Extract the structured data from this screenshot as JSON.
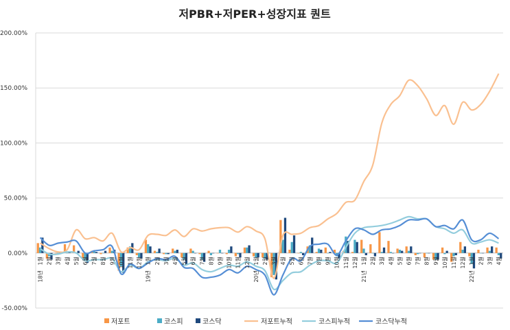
{
  "chart_data": {
    "type": "bar+line",
    "title": "저PBR+저PER+성장지표 퀀트",
    "ylim": [
      -50,
      200
    ],
    "yticks": [
      "-50.00%",
      "0.00%",
      "50.00%",
      "100.00%",
      "150.00%",
      "200.00%"
    ],
    "ytick_values": [
      -50,
      0,
      50,
      100,
      150,
      200
    ],
    "grid": true,
    "legend_position": "bottom",
    "categories": [
      "1월",
      "2월",
      "3월",
      "4월",
      "5월",
      "6월",
      "7월",
      "8월",
      "9월",
      "10월",
      "11월",
      "12월",
      "1월",
      "2월",
      "3월",
      "4월",
      "5월",
      "6월",
      "7월",
      "8월",
      "9월",
      "10월",
      "11월",
      "12월",
      "1월",
      "2월",
      "3월",
      "4월",
      "5월",
      "6월",
      "7월",
      "8월",
      "9월",
      "10월",
      "11월",
      "12월",
      "1월",
      "2월",
      "3월",
      "4월",
      "5월",
      "6월",
      "7월",
      "8월",
      "9월",
      "10월",
      "11월",
      "12월",
      "1월",
      "2월",
      "3월",
      "4월"
    ],
    "year_labels": [
      {
        "index": 0,
        "label": "18년"
      },
      {
        "index": 12,
        "label": "19년"
      },
      {
        "index": 24,
        "label": "20년"
      },
      {
        "index": 36,
        "label": "21년"
      },
      {
        "index": 48,
        "label": "22년"
      }
    ],
    "series": [
      {
        "name": "저포트",
        "kind": "bar",
        "color": "#F79646",
        "values": [
          9,
          -5,
          0,
          8,
          7,
          -5,
          2,
          -1,
          5,
          -16,
          5,
          -2,
          12,
          2,
          -1,
          4,
          -4,
          4,
          -1,
          2,
          0,
          -1,
          -3,
          5,
          -3,
          -4,
          -22,
          30,
          3,
          0,
          6,
          1,
          5,
          3,
          2,
          1,
          12,
          8,
          19,
          11,
          4,
          6,
          -2,
          -4,
          -6,
          5,
          -8,
          10,
          -3,
          3,
          5,
          5
        ]
      },
      {
        "name": "코스피",
        "kind": "bar",
        "color": "#4BACC6",
        "values": [
          5,
          -3,
          0,
          0,
          0,
          -6,
          2,
          0,
          2,
          -12,
          6,
          -4,
          8,
          1,
          -1,
          2,
          -6,
          2,
          -6,
          -2,
          3,
          3,
          -1,
          5,
          -4,
          -5,
          -20,
          12,
          10,
          1,
          7,
          4,
          0,
          -3,
          15,
          12,
          4,
          0,
          1,
          1,
          3,
          2,
          -1,
          0,
          -6,
          -1,
          -3,
          3,
          -10,
          0,
          2,
          -2
        ]
      },
      {
        "name": "코스닥",
        "kind": "bar",
        "color": "#1F497D",
        "values": [
          14,
          -6,
          1,
          1,
          2,
          -9,
          1,
          2,
          3,
          -18,
          9,
          -5,
          6,
          4,
          -1,
          3,
          -10,
          0,
          -8,
          0,
          0,
          6,
          -4,
          7,
          -4,
          -6,
          -24,
          32,
          16,
          -2,
          14,
          3,
          1,
          -5,
          11,
          10,
          -2,
          -3,
          5,
          0,
          2,
          6,
          0,
          0,
          -6,
          2,
          -2,
          6,
          -14,
          0,
          6,
          -5
        ]
      },
      {
        "name": "저포트누적",
        "kind": "line",
        "color": "#FAC090",
        "values": [
          9,
          4,
          1,
          3,
          21,
          13,
          14,
          11,
          18,
          1,
          5,
          3,
          16,
          17,
          16,
          21,
          15,
          22,
          20,
          22,
          23,
          23,
          19,
          24,
          20,
          13,
          -23,
          16,
          17,
          18,
          23,
          25,
          31,
          36,
          46,
          48,
          65,
          80,
          118,
          135,
          143,
          157,
          152,
          140,
          125,
          134,
          117,
          137,
          130,
          135,
          147,
          163
        ]
      },
      {
        "name": "코스피누적",
        "kind": "line",
        "color": "#93CDDD",
        "values": [
          4,
          -1,
          -1,
          1,
          0,
          -7,
          -6,
          -6,
          -5,
          -17,
          -11,
          -14,
          -8,
          -6,
          -7,
          -5,
          -11,
          -9,
          -15,
          -17,
          -14,
          -11,
          -12,
          -8,
          -12,
          -16,
          -33,
          -25,
          -18,
          -17,
          -11,
          -7,
          -7,
          -9,
          5,
          18,
          23,
          24,
          25,
          27,
          30,
          33,
          31,
          31,
          24,
          22,
          18,
          21,
          9,
          10,
          12,
          9
        ]
      },
      {
        "name": "코스닥누적",
        "kind": "line",
        "color": "#558ED5",
        "values": [
          14,
          7,
          9,
          10,
          11,
          0,
          2,
          3,
          6,
          -19,
          -10,
          -14,
          -9,
          -5,
          -6,
          -3,
          -13,
          -14,
          -22,
          -22,
          -20,
          -15,
          -18,
          -12,
          -15,
          -20,
          -38,
          -20,
          -5,
          -7,
          6,
          8,
          8,
          -2,
          11,
          22,
          21,
          17,
          21,
          22,
          25,
          30,
          30,
          31,
          24,
          25,
          22,
          30,
          12,
          12,
          18,
          13
        ]
      }
    ]
  }
}
